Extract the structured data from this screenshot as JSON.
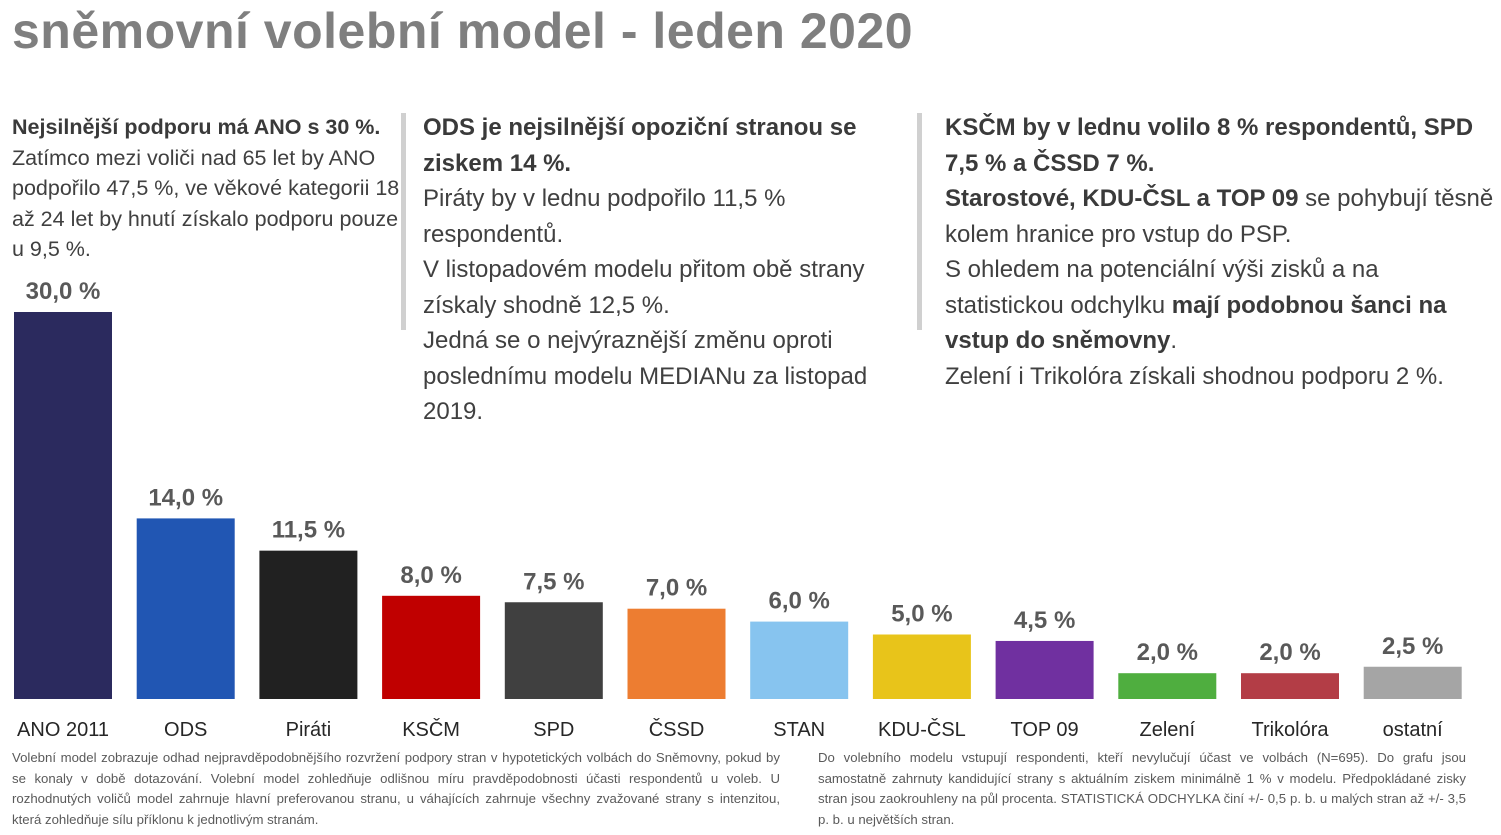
{
  "title": "sněmovní volební model - leden 2020",
  "col1": {
    "bold": "Nejsilnější podporu má ANO s 30 %.",
    "text": "Zatímco mezi voliči nad 65 let by ANO podpořilo 47,5 %, ve věkové kategorii 18 až 24 let by hnutí získalo podporu pouze u 9,5 %."
  },
  "col2": {
    "bold": "ODS je nejsilnější opoziční stranou se ziskem 14 %.",
    "p1": "Piráty by v lednu podpořilo 11,5 % respondentů.",
    "p2": "V listopadovém modelu přitom obě strany získaly shodně 12,5 %.",
    "p3": "Jedná se o nejvýraznější změnu oproti poslednímu modelu MEDIANu za listopad 2019."
  },
  "col3": {
    "bold1": "KSČM by v lednu volilo 8 % respondentů, SPD 7,5 % a ČSSD 7 %.",
    "bold2": "Starostové, KDU-ČSL a TOP 09",
    "text2": " se pohybují těsně kolem hranice pro vstup do PSP.",
    "text3": "S ohledem na potenciální výši zisků a na statistickou odchylku ",
    "bold3": "mají podobnou šanci na vstup do sněmovny",
    "text3b": ".",
    "text4": "Zelení i Trikolóra získali shodnou podporu 2 %."
  },
  "chart_data": {
    "type": "bar",
    "categories": [
      "ANO 2011",
      "ODS",
      "Piráti",
      "KSČM",
      "SPD",
      "ČSSD",
      "STAN",
      "KDU-ČSL",
      "TOP 09",
      "Zelení",
      "Trikolóra",
      "ostatní"
    ],
    "values": [
      30.0,
      14.0,
      11.5,
      8.0,
      7.5,
      7.0,
      6.0,
      5.0,
      4.5,
      2.0,
      2.0,
      2.5
    ],
    "value_labels": [
      "30,0 %",
      "14,0 %",
      "11,5 %",
      "8,0 %",
      "7,5 %",
      "7,0 %",
      "6,0 %",
      "5,0 %",
      "4,5 %",
      "2,0 %",
      "2,0 %",
      "2,5 %"
    ],
    "colors": [
      "#2b2a5e",
      "#2156b3",
      "#212121",
      "#c00000",
      "#404040",
      "#ed7d31",
      "#87c4ef",
      "#e8c41a",
      "#7030a0",
      "#4fae3f",
      "#b33d46",
      "#a5a5a5"
    ],
    "ylim": [
      0,
      30
    ],
    "grid": false,
    "legend": "none"
  },
  "footnote_left": "Volební model zobrazuje odhad nejpravděpodobnějšího rozvržení podpory stran v hypotetických volbách do Sněmovny, pokud by se konaly v době dotazování. Volební model zohledňuje odlišnou míru pravděpodobnosti účasti respondentů u voleb. U rozhodnutých voličů model zahrnuje hlavní preferovanou stranu, u váhajících zahrnuje všechny zvažované strany s intenzitou, která zohledňuje sílu příklonu k jednotlivým stranám.",
  "footnote_right": "Do volebního modelu vstupují respondenti, kteří nevylučují účast ve volbách (N=695). Do grafu jsou samostatně zahrnuty kandidující strany s aktuálním ziskem minimálně 1 % v modelu. Předpokládané zisky stran jsou zaokrouhleny na půl procenta. STATISTICKÁ ODCHYLKA činí +/- 0,5 p. b. u malých stran až +/- 3,5 p. b. u největších stran."
}
